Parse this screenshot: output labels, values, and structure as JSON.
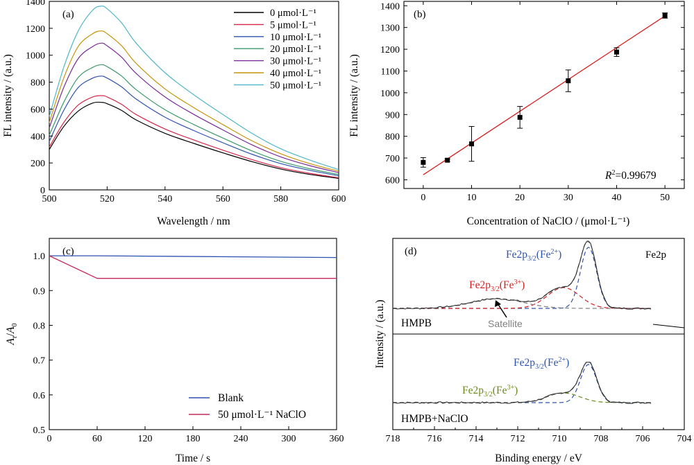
{
  "chart_data": [
    {
      "panel": "(a)",
      "type": "line",
      "xlabel": "Wavelength / nm",
      "ylabel": "FL intensity / (a.u.)",
      "xlim": [
        500,
        600
      ],
      "ylim": [
        0,
        1400
      ],
      "xticks": [
        "500",
        "520",
        "540",
        "560",
        "580",
        "600"
      ],
      "yticks": [
        "0",
        "200",
        "400",
        "600",
        "800",
        "1000",
        "1200",
        "1400"
      ],
      "legend": "top-right",
      "x": [
        500,
        505,
        510,
        515,
        518,
        520,
        525,
        530,
        540,
        550,
        560,
        570,
        580,
        590,
        600
      ],
      "series": [
        {
          "name": "0 μmol·L⁻¹",
          "color": "#000000",
          "values": [
            300,
            470,
            585,
            645,
            650,
            640,
            590,
            520,
            420,
            345,
            275,
            210,
            155,
            115,
            85
          ]
        },
        {
          "name": "5 μmol·L⁻¹",
          "color": "#d8264a",
          "values": [
            318,
            500,
            630,
            690,
            700,
            690,
            635,
            560,
            452,
            370,
            295,
            225,
            165,
            123,
            90
          ]
        },
        {
          "name": "10 μmol·L⁻¹",
          "color": "#2e52b0",
          "values": [
            360,
            590,
            760,
            830,
            845,
            830,
            765,
            675,
            540,
            440,
            350,
            265,
            195,
            145,
            105
          ]
        },
        {
          "name": "20 μmol·L⁻¹",
          "color": "#3a9a6a",
          "values": [
            405,
            650,
            835,
            910,
            930,
            915,
            845,
            745,
            595,
            485,
            385,
            290,
            212,
            157,
            114
          ]
        },
        {
          "name": "30 μmol·L⁻¹",
          "color": "#7a2a9a",
          "values": [
            460,
            760,
            975,
            1065,
            1090,
            1070,
            985,
            865,
            690,
            560,
            445,
            335,
            245,
            180,
            128
          ]
        },
        {
          "name": "40 μmol·L⁻¹",
          "color": "#c8940a",
          "values": [
            500,
            830,
            1065,
            1160,
            1180,
            1160,
            1070,
            940,
            750,
            610,
            485,
            365,
            268,
            195,
            138
          ]
        },
        {
          "name": "50 μmol·L⁻¹",
          "color": "#4fb7c9",
          "values": [
            545,
            910,
            1180,
            1335,
            1365,
            1345,
            1240,
            1090,
            870,
            705,
            560,
            420,
            305,
            222,
            150
          ]
        }
      ]
    },
    {
      "panel": "(b)",
      "type": "scatter",
      "xlabel": "Concentration of NaClO / (μmol·L⁻¹)",
      "ylabel": "FL intensity / (a.u.)",
      "xlim": [
        -4,
        54
      ],
      "ylim": [
        560,
        1420
      ],
      "xticks": [
        "0",
        "10",
        "20",
        "30",
        "40",
        "50"
      ],
      "yticks": [
        "600",
        "700",
        "800",
        "900",
        "1000",
        "1100",
        "1200",
        "1300",
        "1400"
      ],
      "x": [
        0,
        5,
        10,
        20,
        30,
        40,
        50
      ],
      "values": [
        680,
        690,
        765,
        887,
        1055,
        1187,
        1355
      ],
      "errors": [
        22,
        6,
        80,
        50,
        50,
        20,
        12
      ],
      "fit": {
        "slope": 14.6,
        "intercept": 623,
        "color": "#d81e1e"
      },
      "annotation_r": "R",
      "annotation_sup": "2",
      "annotation_val": "=0.99679"
    },
    {
      "panel": "(c)",
      "type": "line",
      "xlabel": "Time / s",
      "ylabel_a": "A",
      "ylabel_sub1": "t",
      "ylabel_sep": "/",
      "ylabel_sub2": "0",
      "xlim": [
        0,
        360
      ],
      "ylim": [
        0.5,
        1.05
      ],
      "xticks": [
        "0",
        "60",
        "120",
        "180",
        "240",
        "300",
        "360"
      ],
      "yticks": [
        "0.5",
        "0.6",
        "0.7",
        "0.8",
        "0.9",
        "1.0"
      ],
      "legend": "bottom-right",
      "series": [
        {
          "name": "Blank",
          "color": "#2e52b0",
          "x": [
            0,
            60,
            360
          ],
          "values": [
            1.0,
            1.0,
            0.995
          ]
        },
        {
          "name": "50 μmol·L⁻¹ NaClO",
          "color": "#c8285a",
          "x": [
            0,
            60,
            360
          ],
          "values": [
            1.0,
            0.935,
            0.935
          ]
        }
      ]
    },
    {
      "panel": "(d)",
      "type": "line",
      "title": "Fe2p",
      "xlabel": "Binding energy / eV",
      "ylabel": "Intensity / (a.u.)",
      "xlim": [
        718,
        704
      ],
      "xticks": [
        "718",
        "716",
        "714",
        "712",
        "710",
        "708",
        "706",
        "704"
      ],
      "top_label": "HMPB",
      "bottom_label": "HMPB+NaClO",
      "top_annotations": {
        "fe2_base": "Fe2p",
        "fe2_sub": "3/2",
        "fe2_pre": "(Fe",
        "fe2_sup": "2+",
        "fe2_post": ")",
        "fe3_base": "Fe2p",
        "fe3_sub": "3/2",
        "fe3_pre": "(Fe",
        "fe3_sup": "3+",
        "fe3_post": ")",
        "satellite": "Satellite"
      },
      "bottom_annotations": {
        "fe2_base": "Fe2p",
        "fe2_sub": "3/2",
        "fe2_pre": "(Fe",
        "fe2_sup": "2+",
        "fe2_post": ")",
        "fe3_base": "Fe2p",
        "fe3_sub": "3/2",
        "fe3_pre": "(Fe",
        "fe3_sup": "3+",
        "fe3_post": ")"
      },
      "colors": {
        "fe2": "#2e52b0",
        "fe3_top": "#d81e1e",
        "fe3_bottom": "#6a8a1a",
        "satellite": "#808080",
        "fit": "#808080",
        "data": "#222222"
      }
    }
  ]
}
